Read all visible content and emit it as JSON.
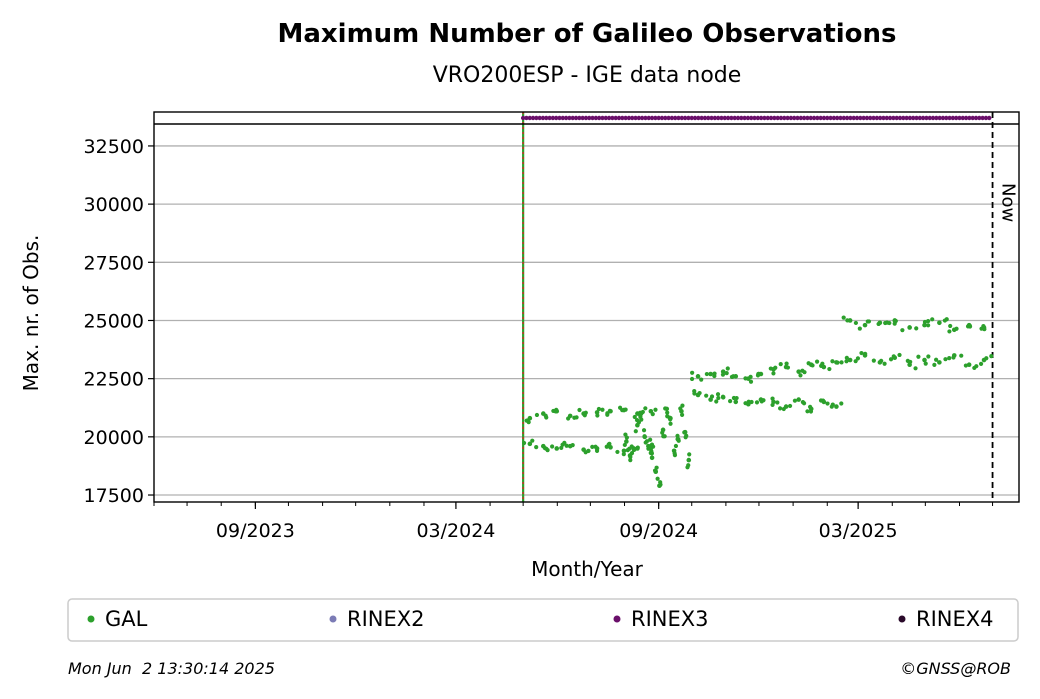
{
  "chart_data": {
    "type": "scatter",
    "title": "Maximum Number of Galileo Observations",
    "subtitle": "VRO200ESP - IGE data node",
    "xlabel": "Month/Year",
    "ylabel": "Max. nr. of Obs.",
    "xlim": [
      "2023-06-01",
      "2025-07-25"
    ],
    "ylim": [
      17200,
      33400
    ],
    "x_ticks": [
      "09/2023",
      "03/2024",
      "09/2024",
      "03/2025"
    ],
    "y_ticks": [
      17500,
      20000,
      22500,
      25000,
      27500,
      30000,
      32500
    ],
    "grid": "horizontal",
    "vertical_markers": [
      {
        "date": "2024-05-01",
        "style": "solid-green-red-dotted"
      },
      {
        "date": "2025-07-01",
        "label": "Now",
        "style": "dashed-black"
      }
    ],
    "series": [
      {
        "name": "GAL",
        "color": "#2ca02c",
        "segments": [
          {
            "start": "2024-05-01",
            "end": "2024-08-31",
            "values_high": [
              20800,
              21000,
              21100,
              20900,
              21000,
              21050,
              21100,
              21150,
              21000,
              21100
            ],
            "values_low": [
              19700,
              19600,
              19500,
              19600,
              19450,
              19500,
              19550,
              19400,
              19500,
              19600
            ]
          },
          {
            "start": "2024-08-01",
            "end": "2024-09-30",
            "values": [
              19800,
              19200,
              19500,
              20500,
              21000,
              20000,
              19600,
              19100,
              18500,
              17900,
              20300,
              21200,
              20800,
              19400,
              19900,
              21100,
              20200,
              19000
            ]
          },
          {
            "start": "2024-10-01",
            "end": "2025-02-15",
            "values_high": [
              22600,
              22700,
              22800,
              22600,
              22500,
              22700,
              22900,
              23000,
              22800,
              23100,
              23000,
              23200
            ],
            "values_low": [
              21800,
              21600,
              21700,
              21500,
              21400,
              21600,
              21500,
              21300,
              21600,
              21200,
              21500,
              21300
            ]
          },
          {
            "start": "2025-02-15",
            "end": "2025-06-30",
            "values_high": [
              25000,
              24800,
              24900,
              25000,
              24700,
              24800,
              24900,
              24600,
              24800,
              24700
            ],
            "values_low": [
              23300,
              23500,
              23200,
              23400,
              23100,
              23300,
              23200,
              23500,
              23100,
              23300
            ]
          }
        ]
      },
      {
        "name": "RINEX2",
        "color": "#7b7bb5",
        "values": []
      },
      {
        "name": "RINEX3",
        "color": "#6a0f6a",
        "start": "2024-05-01",
        "end": "2025-06-30",
        "y": 33800
      },
      {
        "name": "RINEX4",
        "color": "#2a0a2a",
        "values": []
      }
    ],
    "legend": {
      "placement": "bottom",
      "entries": [
        "GAL",
        "RINEX2",
        "RINEX3",
        "RINEX4"
      ]
    }
  },
  "footer": {
    "timestamp": "Mon Jun  2 13:30:14 2025",
    "copyright": "©GNSS@ROB"
  }
}
